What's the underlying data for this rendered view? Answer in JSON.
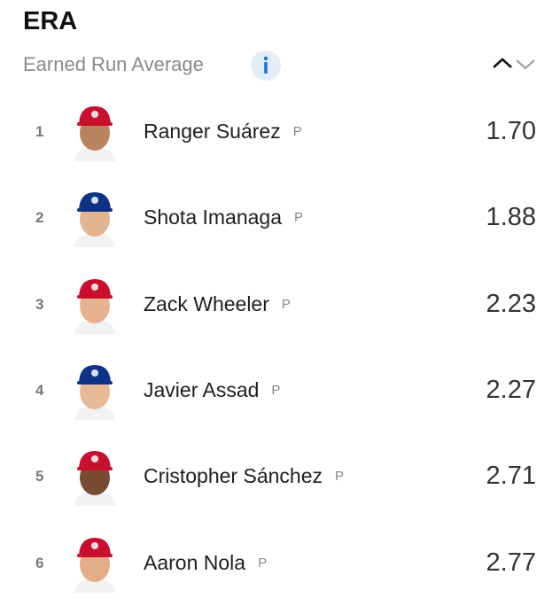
{
  "header": {
    "title": "ERA",
    "subtitle": "Earned Run Average"
  },
  "table": {
    "rows": [
      {
        "rank": 1,
        "name": "Ranger Suárez",
        "position": "P",
        "value": "1.70"
      },
      {
        "rank": 2,
        "name": "Shota Imanaga",
        "position": "P",
        "value": "1.88"
      },
      {
        "rank": 3,
        "name": "Zack Wheeler",
        "position": "P",
        "value": "2.23"
      },
      {
        "rank": 4,
        "name": "Javier Assad",
        "position": "P",
        "value": "2.27"
      },
      {
        "rank": 5,
        "name": "Cristopher Sánchez",
        "position": "P",
        "value": "2.71"
      },
      {
        "rank": 6,
        "name": "Aaron Nola",
        "position": "P",
        "value": "2.77"
      }
    ]
  }
}
